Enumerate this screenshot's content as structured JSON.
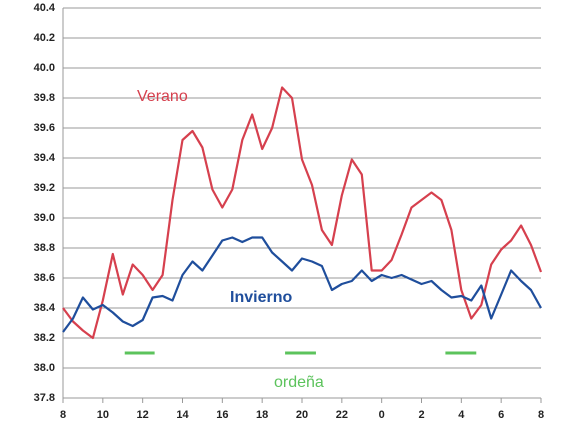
{
  "chart_data": {
    "type": "line",
    "x": [
      8,
      8.5,
      9,
      9.5,
      10,
      10.5,
      11,
      11.5,
      12,
      12.5,
      13,
      13.5,
      14,
      14.5,
      15,
      15.5,
      16,
      16.5,
      17,
      17.5,
      18,
      18.5,
      19,
      19.5,
      20,
      20.5,
      21,
      21.5,
      22,
      22.5,
      23,
      23.5,
      24,
      24.5,
      25,
      25.5,
      26,
      26.5,
      27,
      27.5,
      28,
      28.5,
      29,
      29.5,
      30,
      30.5,
      31,
      31.5,
      32
    ],
    "series": [
      {
        "name": "Verano",
        "color": "#d6404e",
        "values": [
          38.4,
          38.31,
          38.25,
          38.2,
          38.45,
          38.76,
          38.49,
          38.69,
          38.62,
          38.52,
          38.62,
          39.12,
          39.52,
          39.58,
          39.47,
          39.19,
          39.07,
          39.19,
          39.52,
          39.69,
          39.46,
          39.6,
          39.87,
          39.8,
          39.39,
          39.22,
          38.92,
          38.82,
          39.15,
          39.39,
          39.29,
          38.65,
          38.65,
          38.72,
          38.89,
          39.07,
          39.12,
          39.17,
          39.12,
          38.92,
          38.52,
          38.33,
          38.42,
          38.69,
          38.79,
          38.85,
          38.95,
          38.82,
          38.64
        ]
      },
      {
        "name": "Invierno",
        "color": "#1f4e9c",
        "values": [
          38.24,
          38.33,
          38.47,
          38.39,
          38.42,
          38.37,
          38.31,
          38.28,
          38.32,
          38.47,
          38.48,
          38.45,
          38.62,
          38.71,
          38.65,
          38.75,
          38.85,
          38.87,
          38.84,
          38.87,
          38.87,
          38.77,
          38.71,
          38.65,
          38.73,
          38.71,
          38.68,
          38.52,
          38.56,
          38.58,
          38.65,
          38.58,
          38.62,
          38.6,
          38.62,
          38.59,
          38.56,
          38.58,
          38.52,
          38.47,
          38.48,
          38.45,
          38.55,
          38.33,
          38.49,
          38.65,
          38.58,
          38.52,
          38.4
        ]
      }
    ],
    "annotations": [
      "Verano",
      "Invierno",
      "ordeña"
    ],
    "milking_color": "#5cc35c",
    "milking_periods": [
      {
        "start": 11.1,
        "end": 12.6,
        "level": 38.1
      },
      {
        "start": 19.15,
        "end": 20.7,
        "level": 38.1
      },
      {
        "start": 27.2,
        "end": 28.75,
        "level": 38.1
      }
    ],
    "xlim": [
      8,
      32
    ],
    "xticks": [
      8,
      10,
      12,
      14,
      16,
      18,
      20,
      22,
      {
        "value": 24,
        "label": "0"
      },
      {
        "value": 26,
        "label": "2"
      },
      {
        "value": 28,
        "label": "4"
      },
      {
        "value": 30,
        "label": "6"
      },
      {
        "value": 32,
        "label": "8"
      }
    ],
    "ylim": [
      37.8,
      40.4
    ],
    "yticks": [
      37.8,
      {
        "value": 38,
        "label": "38.0"
      },
      38.2,
      38.4,
      38.6,
      38.8,
      {
        "value": 39,
        "label": "39.0"
      },
      39.2,
      39.4,
      39.6,
      39.8,
      {
        "value": 40,
        "label": "40.0"
      },
      40.2,
      40.4
    ],
    "grid": true
  }
}
